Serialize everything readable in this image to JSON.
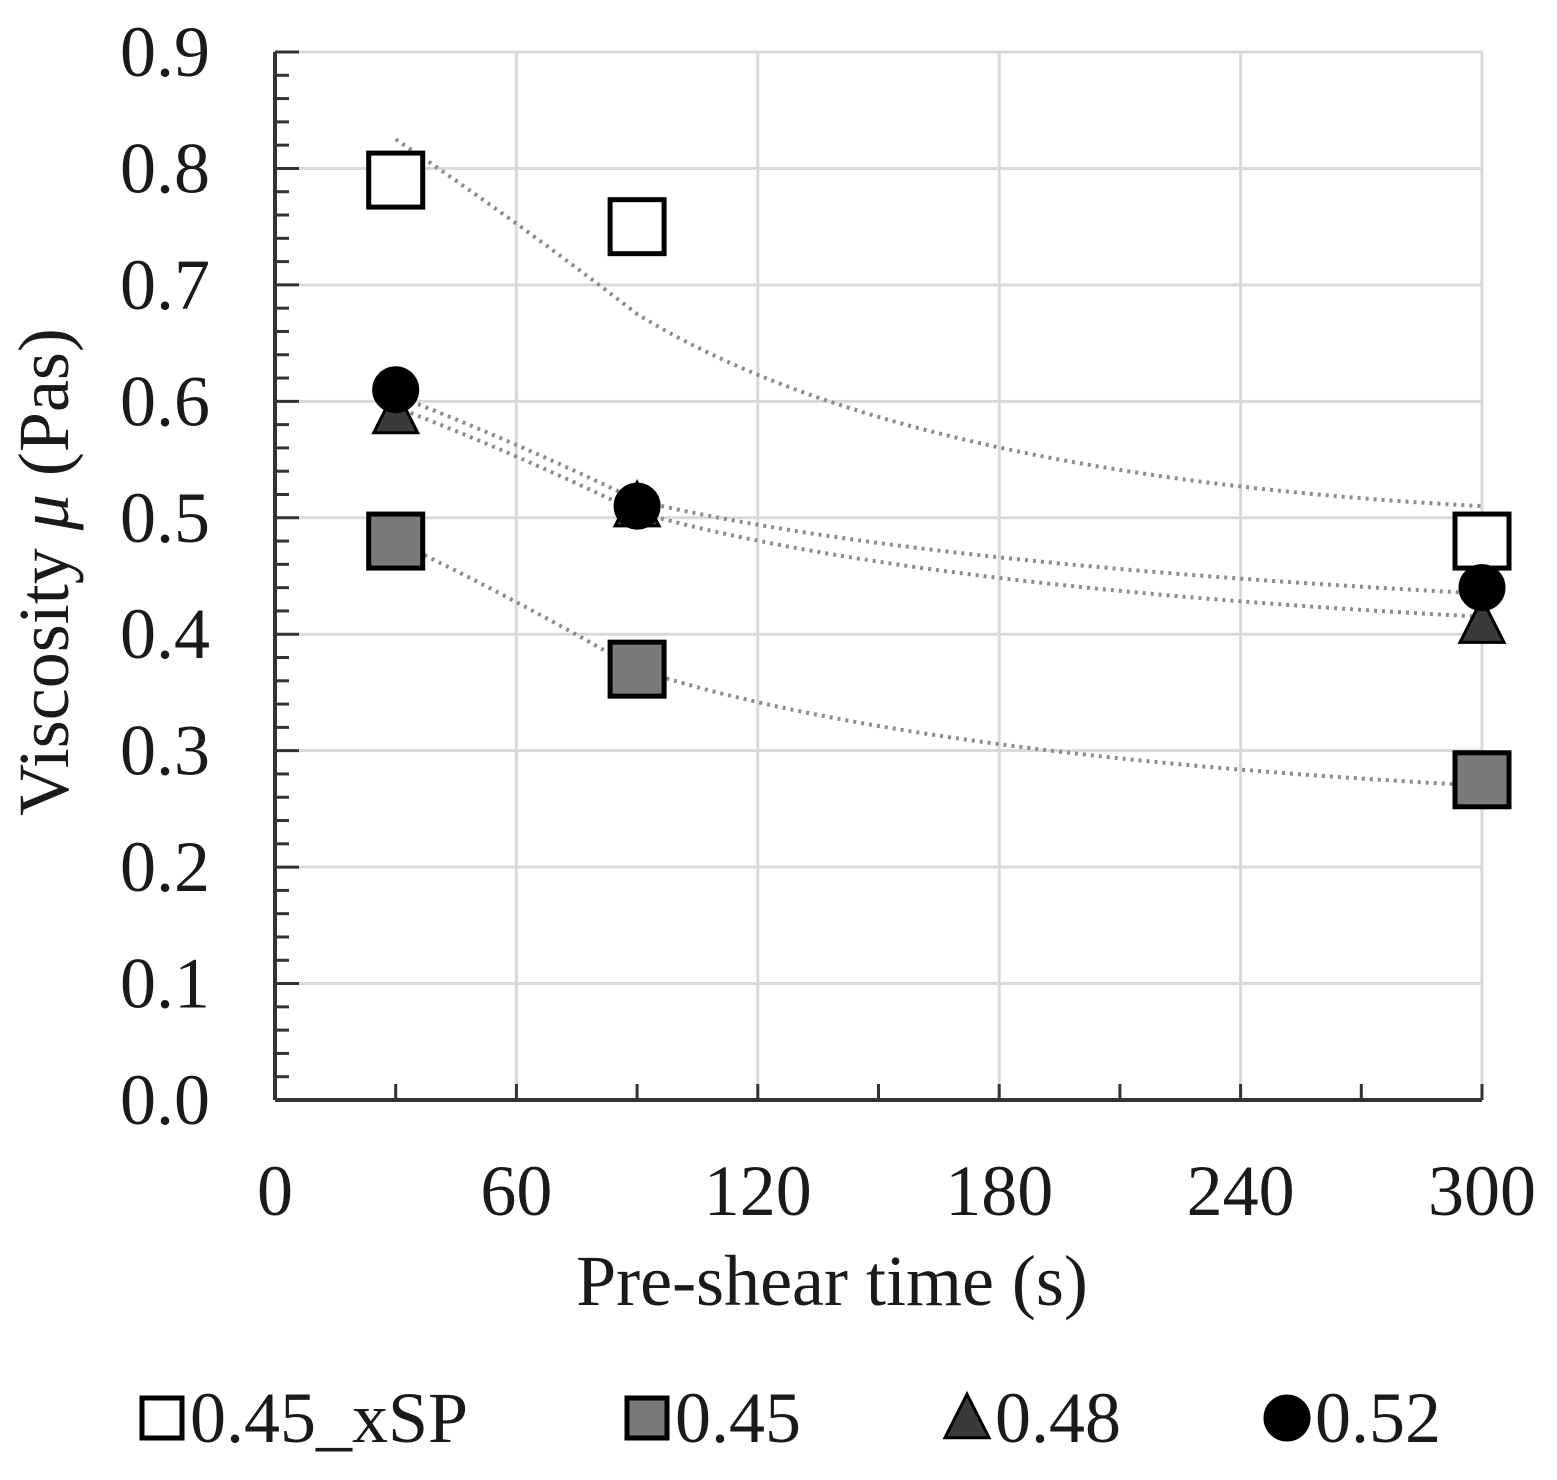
{
  "chart_data": {
    "type": "scatter",
    "title": "",
    "xlabel": "Pre-shear time (s)",
    "ylabel": "Viscosity μ (Pas)",
    "ylabel_parts": [
      "Viscosity ",
      "μ",
      " (Pas)"
    ],
    "xlim": [
      0,
      300
    ],
    "ylim": [
      0,
      0.9
    ],
    "x_ticks": [
      0,
      60,
      120,
      180,
      240,
      300
    ],
    "x_tick_labels": [
      "0",
      "60",
      "120",
      "180",
      "240",
      "300"
    ],
    "y_ticks": [
      0,
      0.1,
      0.2,
      0.3,
      0.4,
      0.5,
      0.6,
      0.7,
      0.8,
      0.9
    ],
    "y_tick_labels": [
      "0.0",
      "0.1",
      "0.2",
      "0.3",
      "0.4",
      "0.5",
      "0.6",
      "0.7",
      "0.8",
      "0.9"
    ],
    "grid": true,
    "legend_position": "bottom",
    "series": [
      {
        "name": "0.45_xSP",
        "marker": "square",
        "fill": "#ffffff",
        "x": [
          30,
          90,
          300
        ],
        "y": [
          0.79,
          0.75,
          0.48
        ],
        "trend_y": [
          0.825,
          0.675,
          0.51
        ]
      },
      {
        "name": "0.45",
        "marker": "square",
        "fill": "#7a7a7a",
        "x": [
          30,
          90,
          300
        ],
        "y": [
          0.48,
          0.37,
          0.275
        ],
        "trend_y": [
          0.48,
          0.37,
          0.27
        ]
      },
      {
        "name": "0.48",
        "marker": "triangle",
        "fill": "#3a3a3a",
        "x": [
          30,
          90,
          300
        ],
        "y": [
          0.59,
          0.51,
          0.41
        ],
        "trend_y": [
          0.595,
          0.505,
          0.415
        ]
      },
      {
        "name": "0.52",
        "marker": "circle",
        "fill": "#000000",
        "x": [
          30,
          90,
          300
        ],
        "y": [
          0.61,
          0.51,
          0.44
        ],
        "trend_y": [
          0.605,
          0.515,
          0.435
        ]
      }
    ]
  }
}
